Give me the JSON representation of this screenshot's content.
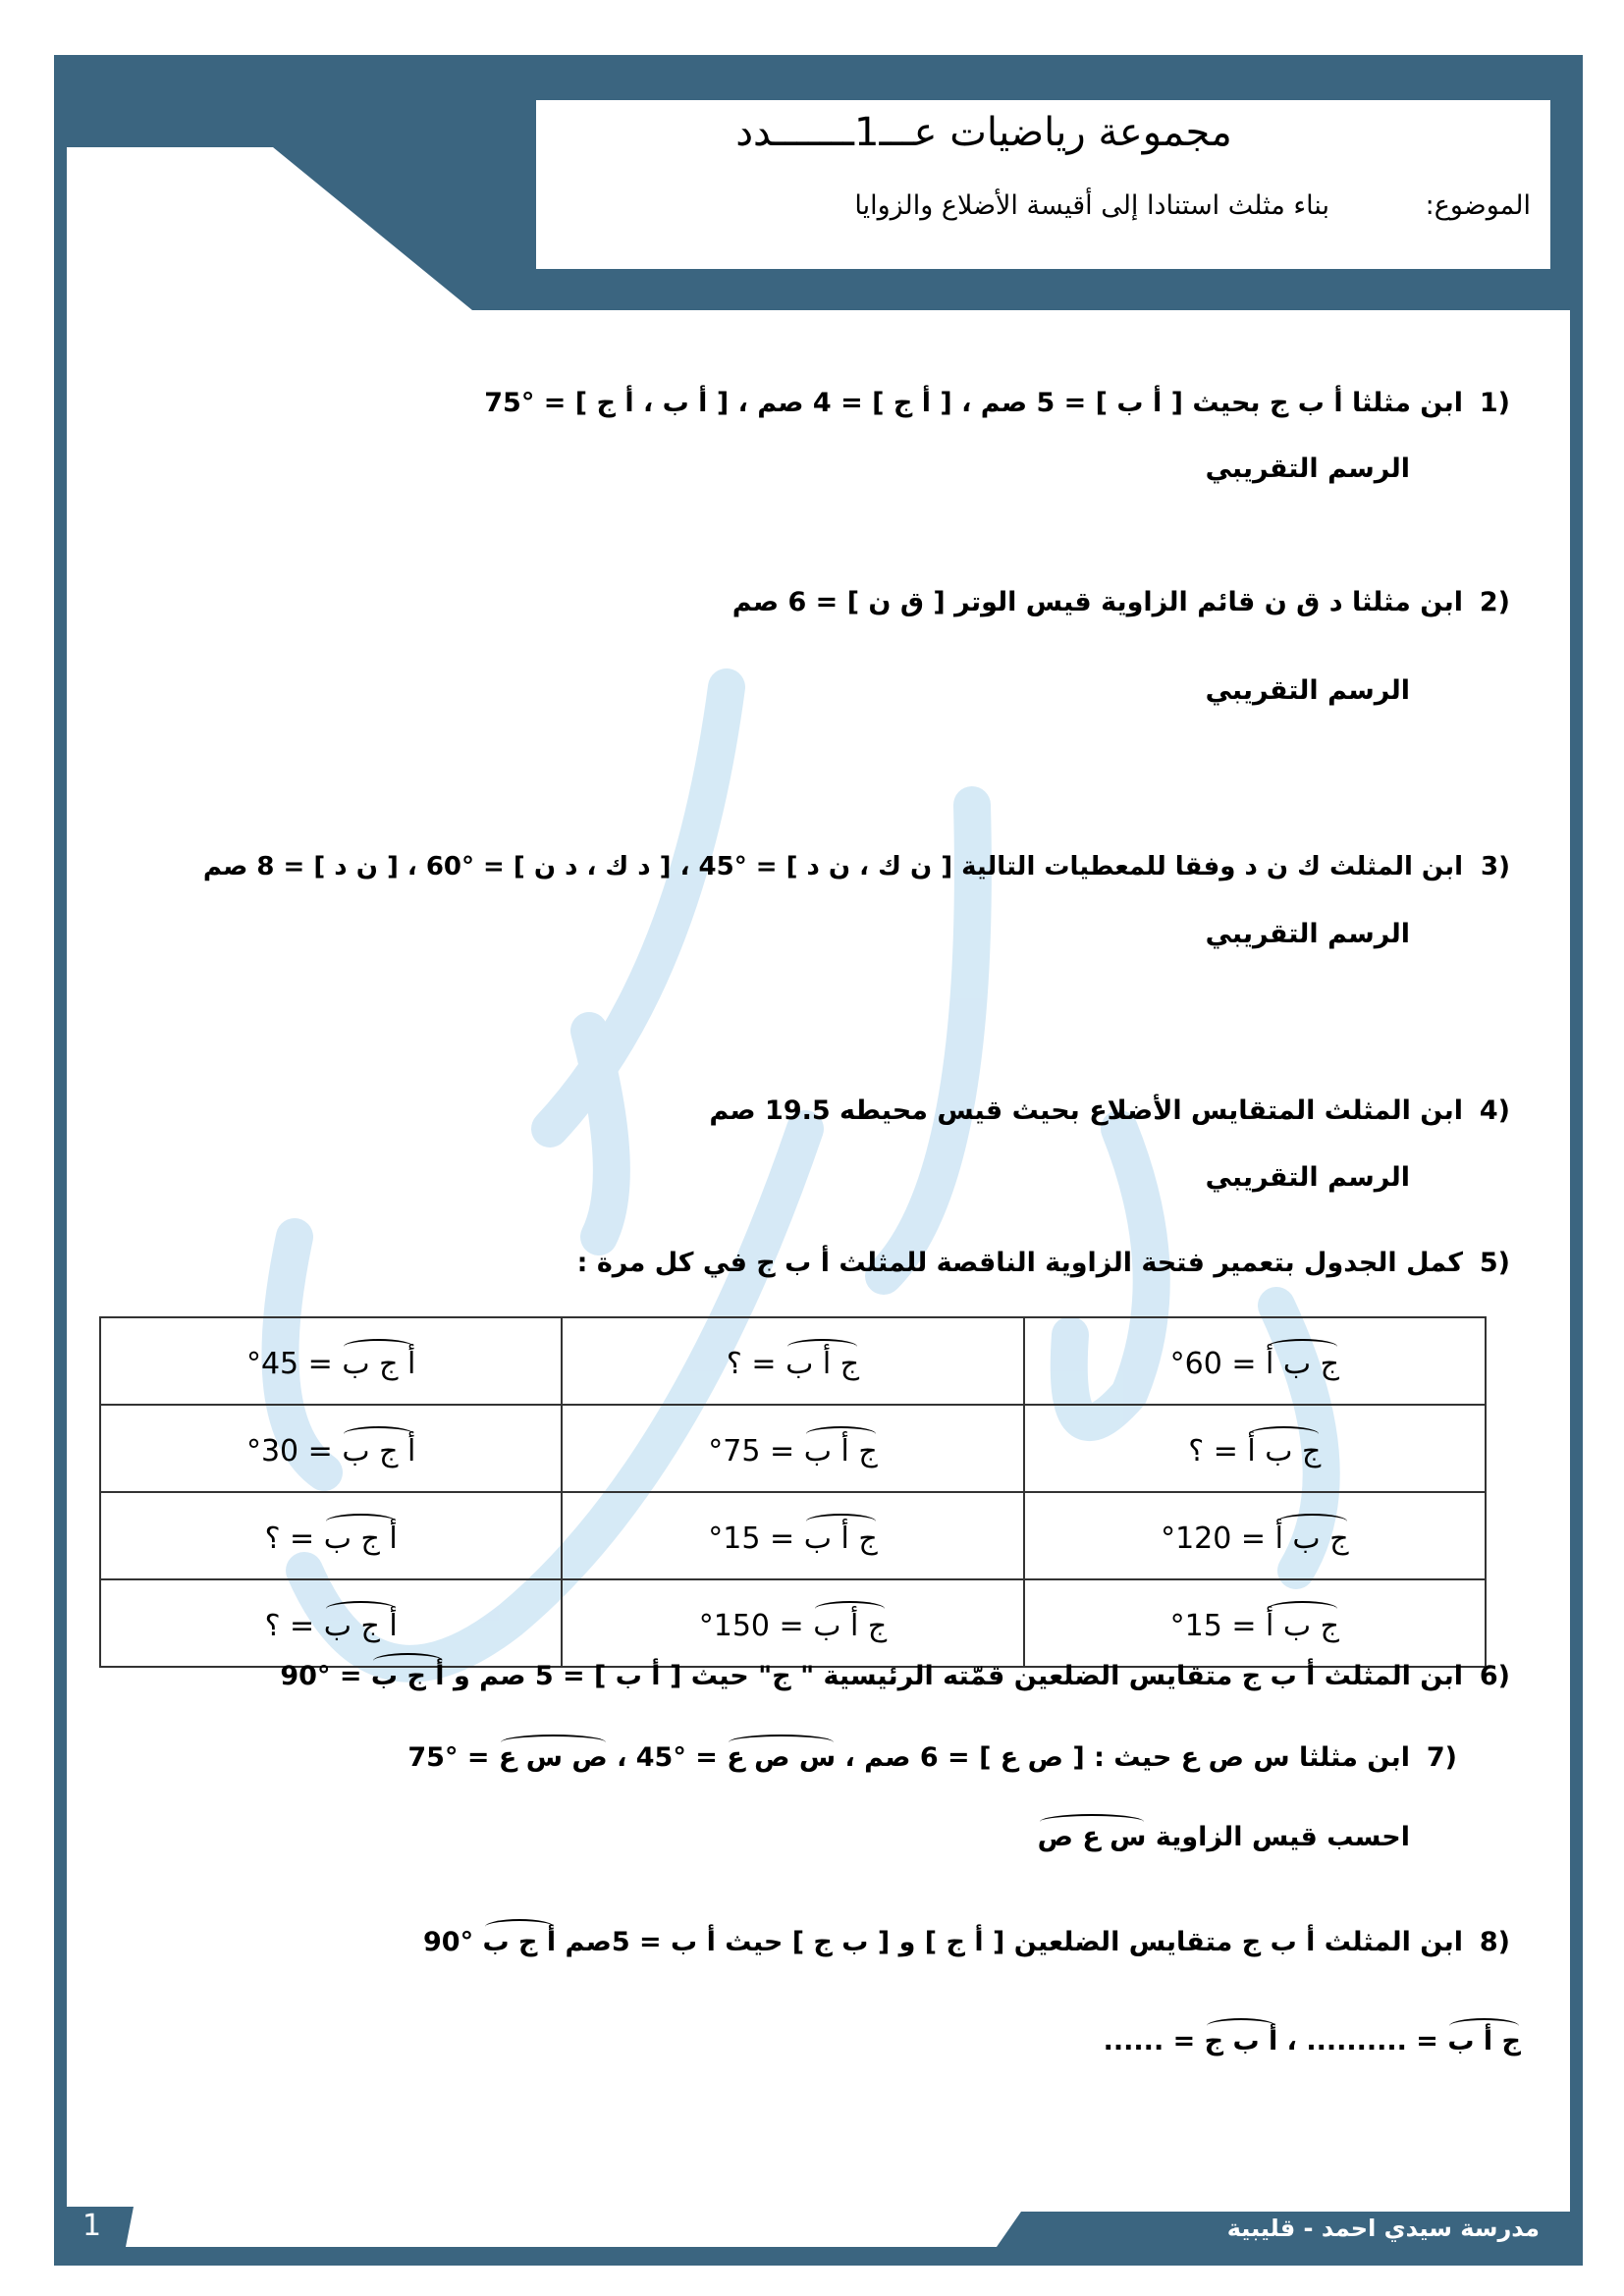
{
  "colors": {
    "frame": "#3b6580",
    "watermark": "#cfe6f5"
  },
  "header": {
    "title": "مجموعة رياضيات عـــ1ـــــــدد",
    "subject_label": "الموضوع:",
    "subject": "بناء مثلث استنادا إلى أقيسة الأضلاع والزوايا"
  },
  "sketch_label": "الرسم التقريبي",
  "questions": [
    {
      "num": "1)",
      "text": "ابن مثلثا  أ ب ج بحيث [ أ ب ] = 5 صم  ،  [ أ ج ] = 4 صم  ، [ أ ب ، أ ج ] = °75"
    },
    {
      "num": "2)",
      "text": "ابن مثلثا د ق ن قائم الزاوية قيس الوتر [ ق ن ] = 6 صم"
    },
    {
      "num": "3)",
      "text": "ابن المثلث ك ن د وفقا للمعطيات التالية [ ن ك ، ن د ] = °45 ، [ د ك ، د ن ] = °60 ، [ ن د ] = 8 صم"
    },
    {
      "num": "4)",
      "text": "ابن المثلث المتقايس الأضلاع بحيث قيس محيطه 19.5 صم"
    },
    {
      "num": "5)",
      "text": "كمل الجدول بتعمير فتحة الزاوية الناقصة للمثلث أ ب ج في كل مرة :"
    },
    {
      "num": "6)",
      "text": "ابن المثلث أ ب ج  متقايس الضلعين قمّته الرئيسية \" ج\" حيث [ أ ب ] = 5 صم و ",
      "angle": "أ ج ب",
      "tail": " = °90"
    },
    {
      "num": "7)",
      "text": "ابن مثلثا س ص ع حيث : [ ص ع ] = 6 صم ، ",
      "angle": "س ص ع",
      "mid": " = °45 ، ",
      "angle2": "ص س ع",
      "tail": " = °75",
      "sub_text": "احسب قيس الزاوية ",
      "sub_angle": "س ع ص"
    },
    {
      "num": "8)",
      "text": "ابن المثلث أ ب ج متقايس الضلعين [ أ ج ] و [ ب ج ] حيث أ ب = 5صم ",
      "angle": "أ ج ب",
      "tail": " °90",
      "answer_angle1": "ج أ ب",
      "answer_mid": " = .......... ، ",
      "answer_angle2": "أ ب ج",
      "answer_tail": " = ......"
    }
  ],
  "table": {
    "rows": [
      [
        {
          "angle": "ج ب أ",
          "value": " = °60"
        },
        {
          "angle": "ج أ ب",
          "value": " = ؟"
        },
        {
          "angle": "أ ج ب",
          "value": " = °45"
        }
      ],
      [
        {
          "angle": "ج ب أ",
          "value": " = ؟"
        },
        {
          "angle": "ج أ ب",
          "value": " = °75"
        },
        {
          "angle": "أ ج ب",
          "value": " = °30"
        }
      ],
      [
        {
          "angle": "ج ب أ",
          "value": " = °120"
        },
        {
          "angle": "ج أ ب",
          "value": " = °15"
        },
        {
          "angle": "أ ج ب",
          "value": " = ؟"
        }
      ],
      [
        {
          "angle": "ج ب أ",
          "value": " = °15"
        },
        {
          "angle": "ج أ ب",
          "value": " = °150"
        },
        {
          "angle": "أ ج ب",
          "value": " = ؟"
        }
      ]
    ]
  },
  "footer": {
    "school": "مدرسة سيدي احمد - قليبية",
    "page": "1"
  }
}
